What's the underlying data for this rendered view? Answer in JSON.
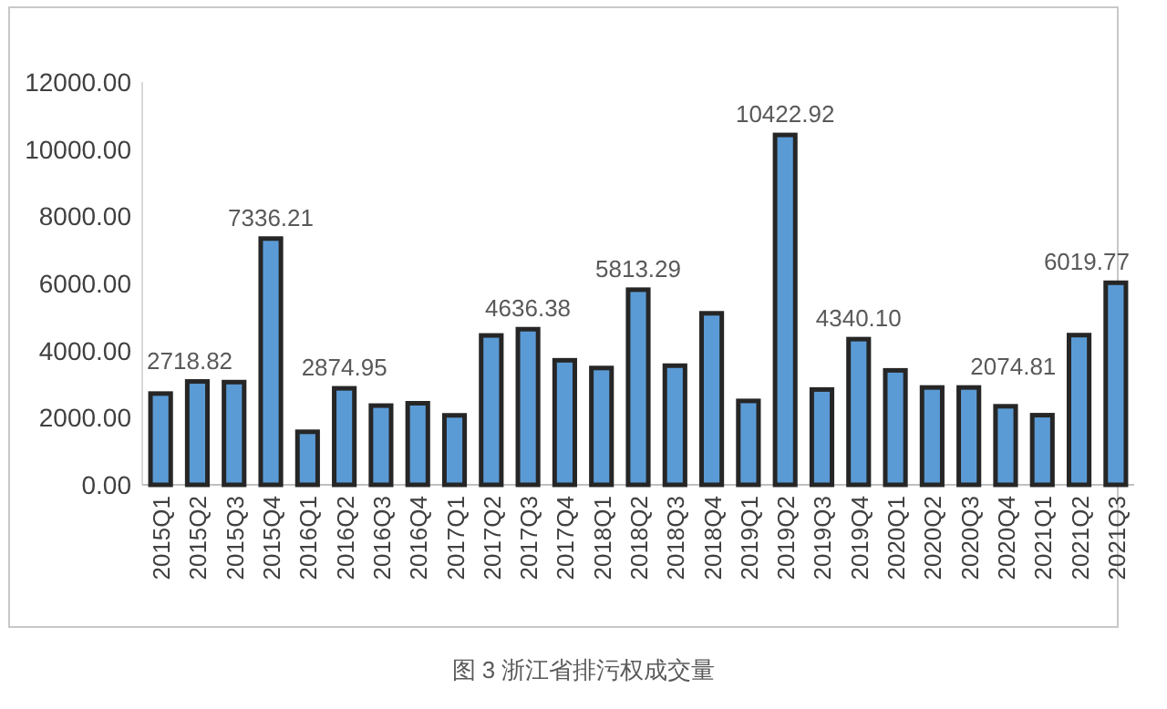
{
  "chart_data": {
    "type": "bar",
    "categories": [
      "2015Q1",
      "2015Q2",
      "2015Q3",
      "2015Q4",
      "2016Q1",
      "2016Q2",
      "2016Q3",
      "2016Q4",
      "2017Q1",
      "2017Q2",
      "2017Q3",
      "2017Q4",
      "2018Q1",
      "2018Q2",
      "2018Q3",
      "2018Q4",
      "2019Q1",
      "2019Q2",
      "2019Q3",
      "2019Q4",
      "2020Q1",
      "2020Q2",
      "2020Q3",
      "2020Q4",
      "2021Q1",
      "2021Q2",
      "2021Q3"
    ],
    "values": [
      2718.82,
      3080,
      3060,
      7336.21,
      1580,
      2874.95,
      2360,
      2430,
      2070,
      4450,
      4636.38,
      3710,
      3480,
      5813.29,
      3550,
      5110,
      2500,
      10422.92,
      2840,
      4340.1,
      3410,
      2900,
      2900,
      2340,
      2074.81,
      4460,
      6019.77
    ],
    "value_labels": [
      "2718.82",
      null,
      null,
      "7336.21",
      null,
      "2874.95",
      null,
      null,
      null,
      null,
      "4636.38",
      null,
      null,
      "5813.29",
      null,
      null,
      null,
      "10422.92",
      null,
      "4340.10",
      null,
      null,
      null,
      null,
      "2074.81",
      null,
      "6019.77"
    ],
    "color": "#5b9bd5",
    "ylim": [
      0,
      12000
    ],
    "yticks": [
      {
        "value": 0,
        "label": "0.00"
      },
      {
        "value": 2000,
        "label": "2000.00"
      },
      {
        "value": 4000,
        "label": "4000.00"
      },
      {
        "value": 6000,
        "label": "6000.00"
      },
      {
        "value": 8000,
        "label": "8000.00"
      },
      {
        "value": 10000,
        "label": "10000.00"
      },
      {
        "value": 12000,
        "label": "12000.00"
      }
    ],
    "grid": false,
    "annotations": [
      "图 3  浙江省排污权成交量"
    ]
  }
}
